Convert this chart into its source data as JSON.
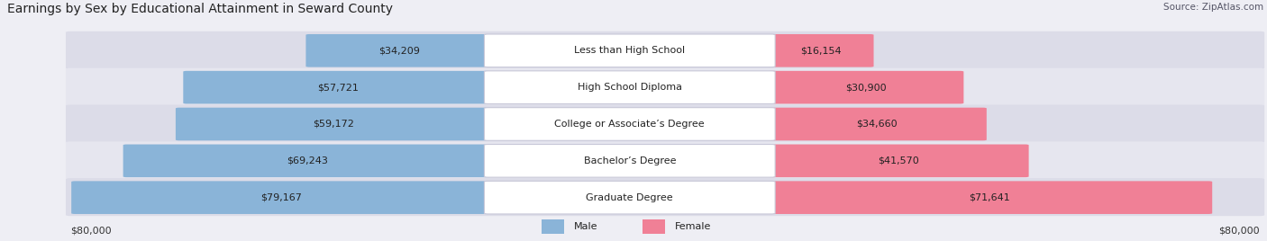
{
  "title": "Earnings by Sex by Educational Attainment in Seward County",
  "source": "Source: ZipAtlas.com",
  "categories": [
    "Less than High School",
    "High School Diploma",
    "College or Associate’s Degree",
    "Bachelor’s Degree",
    "Graduate Degree"
  ],
  "male_values": [
    34209,
    57721,
    59172,
    69243,
    79167
  ],
  "female_values": [
    16154,
    30900,
    34660,
    41570,
    71641
  ],
  "male_color": "#8ab4d8",
  "female_color": "#f08096",
  "max_value": 80000,
  "axis_label_left": "$80,000",
  "axis_label_right": "$80,000",
  "bg_color": "#eeeef4",
  "title_fontsize": 10,
  "label_fontsize": 8,
  "source_fontsize": 7.5
}
